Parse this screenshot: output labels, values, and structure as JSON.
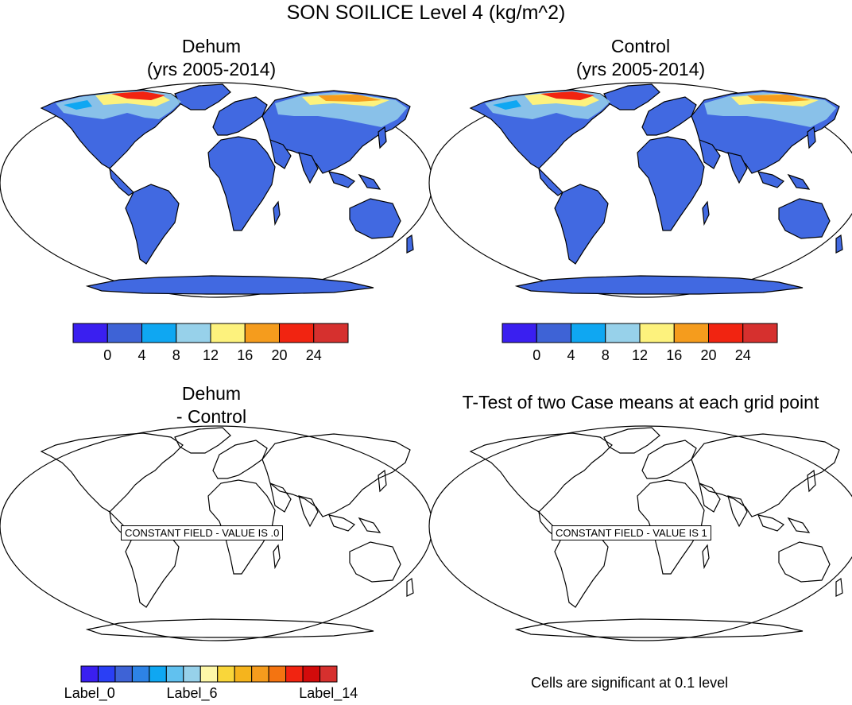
{
  "title": "SON SOILICE Level 4 (kg/m^2)",
  "panels": [
    {
      "title_line1": "Dehum",
      "title_line2": "(yrs 2005-2014)"
    },
    {
      "title_line1": "Control",
      "title_line2": "(yrs 2005-2014)"
    },
    {
      "title_line1": "Dehum",
      "title_line2": "- Control",
      "note": "CONSTANT FIELD - VALUE IS .0"
    },
    {
      "title_line1": "T-Test of two Case means at each grid point",
      "note": "CONSTANT FIELD - VALUE IS 1"
    }
  ],
  "colorbar_top": {
    "colors": [
      "#3a1ff0",
      "#3e63d6",
      "#0fa7f2",
      "#97d1ea",
      "#fdf27d",
      "#f59c1d",
      "#f12411",
      "#d6302e"
    ],
    "tick_labels": [
      "0",
      "4",
      "8",
      "12",
      "16",
      "20",
      "24"
    ]
  },
  "colorbar_bottom": {
    "colors": [
      "#3a1ff0",
      "#2a3ff5",
      "#3e63d6",
      "#2d83e6",
      "#0fa7f2",
      "#61c1ef",
      "#97d1ea",
      "#fdf7a8",
      "#f9d63a",
      "#f5b41d",
      "#f59c1d",
      "#f47411",
      "#f12411",
      "#d20b0b",
      "#d6302e"
    ],
    "tick_labels": [
      "Label_0",
      "Label_6",
      "Label_14"
    ]
  },
  "footnote": "Cells are significant at 0.1 level",
  "colors": {
    "land": "#4169e1",
    "ocean": "#ffffff",
    "ice_high": "#d6302e",
    "ice_mid": "#f59c1d",
    "ice_low": "#fdf27d"
  }
}
